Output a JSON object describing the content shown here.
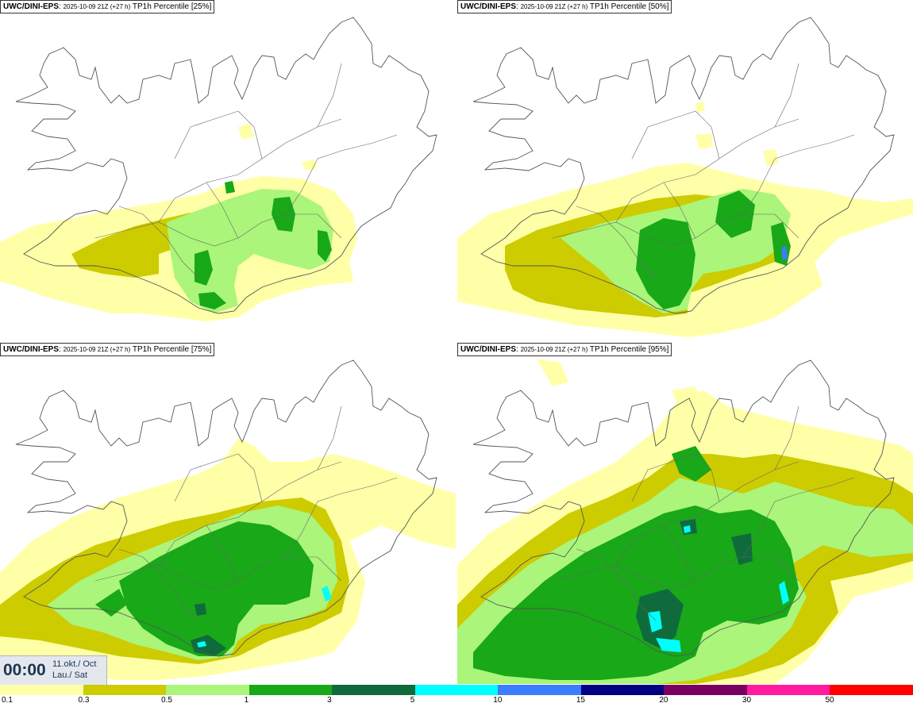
{
  "panels": [
    {
      "id": "p25",
      "model": "UWC/DINI-EPS",
      "run": "2025-10-09 21Z (+27 h)",
      "field": "TP1h Percentile [25%]"
    },
    {
      "id": "p50",
      "model": "UWC/DINI-EPS",
      "run": "2025-10-09 21Z (+27 h)",
      "field": "TP1h Percentile [50%]"
    },
    {
      "id": "p75",
      "model": "UWC/DINI-EPS",
      "run": "2025-10-09 21Z (+27 h)",
      "field": "TP1h Percentile [75%]"
    },
    {
      "id": "p95",
      "model": "UWC/DINI-EPS",
      "run": "2025-10-09 21Z (+27 h)",
      "field": "TP1h Percentile [95%]"
    }
  ],
  "time": {
    "clock": "00:00",
    "date_line1": "11.okt./ Oct",
    "date_line2": "Lau./ Sat"
  },
  "legend": {
    "colors": [
      "#ffffa8",
      "#cccc00",
      "#aaf57a",
      "#18a818",
      "#0f6b3c",
      "#00ffff",
      "#3c7cff",
      "#000080",
      "#7a0060",
      "#ff1aa0",
      "#ff0000"
    ],
    "labels": [
      "0.1",
      "0.3",
      "0.5",
      "1",
      "3",
      "5",
      "10",
      "15",
      "20",
      "30",
      "50"
    ]
  }
}
